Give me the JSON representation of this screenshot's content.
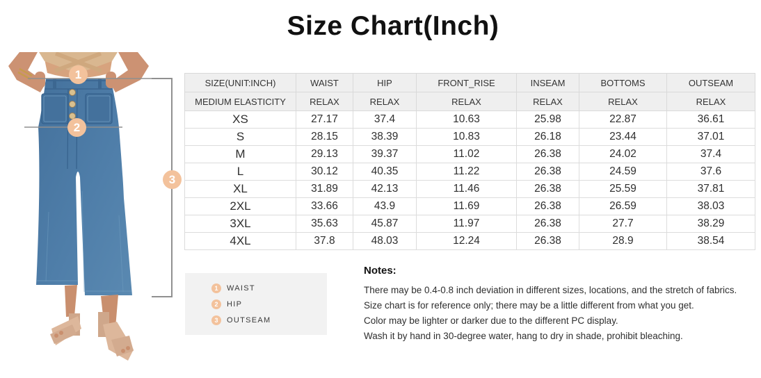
{
  "title": "Size Chart(Inch)",
  "chart_data": {
    "type": "table",
    "title": "Size Chart(Inch)",
    "header_row1": [
      "SIZE(UNIT:INCH)",
      "WAIST",
      "HIP",
      "FRONT_RISE",
      "INSEAM",
      "BOTTOMS",
      "OUTSEAM"
    ],
    "header_row2": [
      "MEDIUM ELASTICITY",
      "RELAX",
      "RELAX",
      "RELAX",
      "RELAX",
      "RELAX",
      "RELAX"
    ],
    "rows": [
      [
        "XS",
        "27.17",
        "37.4",
        "10.63",
        "25.98",
        "22.87",
        "36.61"
      ],
      [
        "S",
        "28.15",
        "38.39",
        "10.83",
        "26.18",
        "23.44",
        "37.01"
      ],
      [
        "M",
        "29.13",
        "39.37",
        "11.02",
        "26.38",
        "24.02",
        "37.4"
      ],
      [
        "L",
        "30.12",
        "40.35",
        "11.22",
        "26.38",
        "24.59",
        "37.6"
      ],
      [
        "XL",
        "31.89",
        "42.13",
        "11.46",
        "26.38",
        "25.59",
        "37.81"
      ],
      [
        "2XL",
        "33.66",
        "43.9",
        "11.69",
        "26.38",
        "26.59",
        "38.03"
      ],
      [
        "3XL",
        "35.63",
        "45.87",
        "11.97",
        "26.38",
        "27.7",
        "38.29"
      ],
      [
        "4XL",
        "37.8",
        "48.03",
        "12.24",
        "26.38",
        "28.9",
        "38.54"
      ]
    ]
  },
  "markers": {
    "waist": "1",
    "hip": "2",
    "outseam": "3"
  },
  "legend": {
    "items": [
      {
        "num": "1",
        "label": "WAIST"
      },
      {
        "num": "2",
        "label": "HIP"
      },
      {
        "num": "3",
        "label": "OUTSEAM"
      }
    ]
  },
  "notes": {
    "heading": "Notes:",
    "lines": [
      "There may be 0.4-0.8 inch deviation in different sizes, locations, and the stretch of fabrics.",
      "Size chart is for reference only; there may be a little different from what you get.",
      "Color may be lighter or darker due to the different PC display.",
      "Wash it by hand in 30-degree water, hang to dry in shade, prohibit bleaching."
    ]
  },
  "colors": {
    "marker_circle": "#f3c29c",
    "header_bg": "#efefef",
    "table_border": "#d9d9d9",
    "legend_bg": "#f2f2f2",
    "bracket_line": "#909090",
    "denim": "#4a78a4"
  }
}
